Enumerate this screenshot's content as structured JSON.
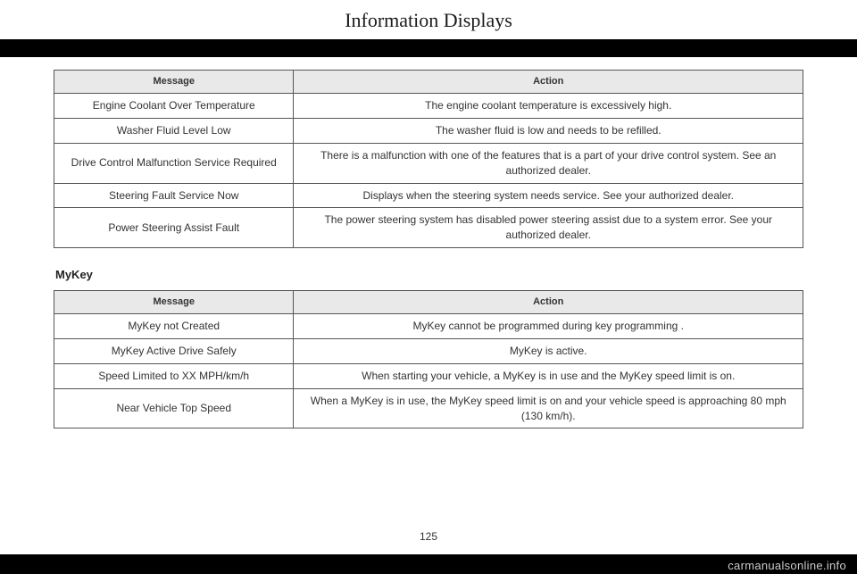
{
  "page": {
    "title": "Information Displays",
    "number": "125",
    "watermark": "carmanualsonline.info"
  },
  "table1": {
    "headers": {
      "col1": "Message",
      "col2": "Action"
    },
    "rows": [
      {
        "message": "Engine Coolant Over Temperature",
        "action": "The engine coolant temperature is excessively high."
      },
      {
        "message": "Washer Fluid Level Low",
        "action": "The washer fluid is low and needs to be refilled."
      },
      {
        "message": "Drive Control Malfunction Service Required",
        "action": "There is a malfunction with one of the features that is a part of your drive control system. See an authorized dealer."
      },
      {
        "message": "Steering Fault Service Now",
        "action": "Displays when the steering system needs service. See your authorized dealer."
      },
      {
        "message": "Power Steering Assist Fault",
        "action": "The power steering system has disabled power steering assist due to a system error. See your authorized dealer."
      }
    ]
  },
  "section2": {
    "heading": "MyKey"
  },
  "table2": {
    "headers": {
      "col1": "Message",
      "col2": "Action"
    },
    "rows": [
      {
        "message": "MyKey not Created",
        "action": "MyKey cannot be programmed during key programming ."
      },
      {
        "message": "MyKey Active Drive Safely",
        "action": "MyKey is active."
      },
      {
        "message": "Speed Limited to XX MPH/km/h",
        "action": "When starting your vehicle, a MyKey is in use and the MyKey speed limit is on."
      },
      {
        "message": "Near Vehicle Top Speed",
        "action": "When a MyKey is in use, the MyKey speed limit is on and your vehicle speed is approaching 80 mph (130 km/h)."
      }
    ]
  }
}
